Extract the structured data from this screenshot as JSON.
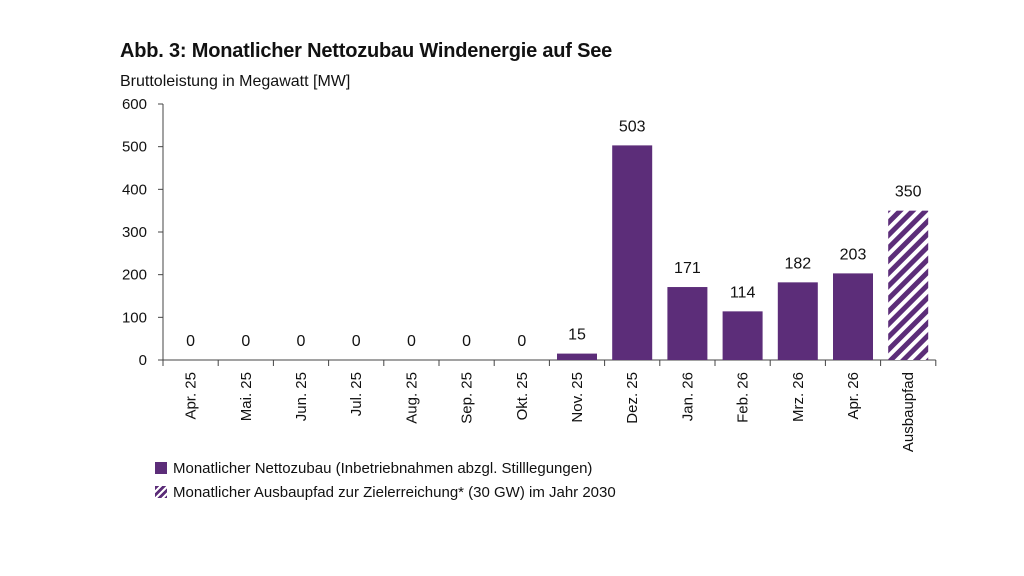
{
  "chart_data": {
    "type": "bar",
    "title": "Abb. 3: Monatlicher Nettozubau Windenergie auf See",
    "ylabel": "Bruttoleistung in Megawatt [MW]",
    "ylim": [
      0,
      600
    ],
    "yticks": [
      0,
      100,
      200,
      300,
      400,
      500,
      600
    ],
    "categories": [
      "Apr. 25",
      "Mai. 25",
      "Jun. 25",
      "Jul. 25",
      "Aug. 25",
      "Sep. 25",
      "Okt. 25",
      "Nov. 25",
      "Dez. 25",
      "Jan. 26",
      "Feb. 26",
      "Mrz. 26",
      "Apr. 26",
      "Ausbaupfad"
    ],
    "values": [
      0,
      0,
      0,
      0,
      0,
      0,
      0,
      15,
      503,
      171,
      114,
      182,
      203,
      350
    ],
    "hatched_index": 13,
    "bar_color": "#5c2d79",
    "legend": [
      {
        "label": "Monatlicher Nettozubau (Inbetriebnahmen abzgl. Stilllegungen)",
        "style": "solid"
      },
      {
        "label": "Monatlicher Ausbaupfad zur Zielerreichung* (30 GW) im Jahr 2030",
        "style": "hatched"
      }
    ],
    "legend_position": "bottom-left",
    "grid": false
  }
}
